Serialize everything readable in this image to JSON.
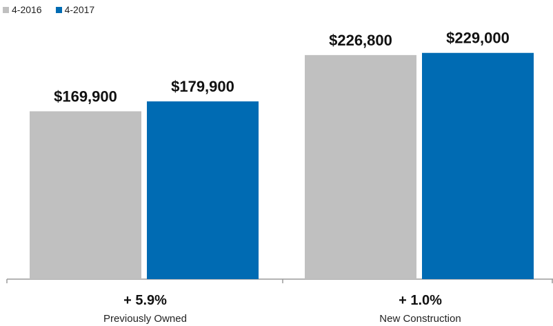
{
  "legend": [
    {
      "label": "4-2016",
      "color": "#c0c0c0"
    },
    {
      "label": "4-2017",
      "color": "#006bb3"
    }
  ],
  "chart_data": {
    "type": "bar",
    "categories": [
      "Previously Owned",
      "New Construction"
    ],
    "category_changes": [
      "+ 5.9%",
      "+ 1.0%"
    ],
    "series": [
      {
        "name": "4-2016",
        "values": [
          169900,
          226800
        ],
        "labels": [
          "$169,900",
          "$226,800"
        ],
        "color": "#c0c0c0"
      },
      {
        "name": "4-2017",
        "values": [
          179900,
          229000
        ],
        "labels": [
          "$179,900",
          "$229,000"
        ],
        "color": "#006bb3"
      }
    ],
    "ylim": [
      0,
      263000
    ],
    "grid": false,
    "legend_position": "top-left"
  }
}
